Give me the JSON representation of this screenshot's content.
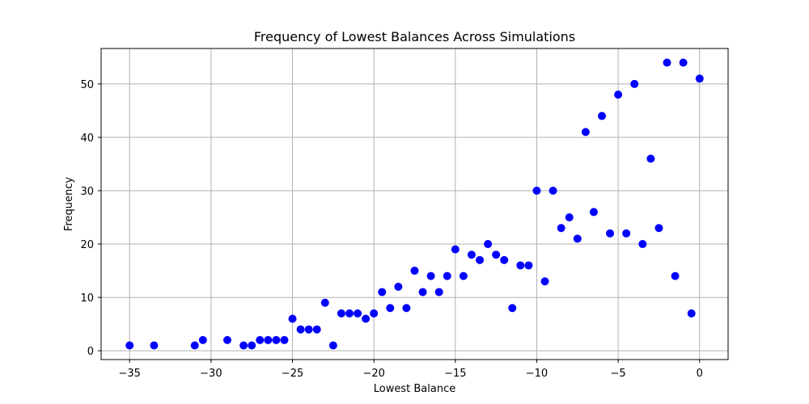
{
  "chart_data": {
    "type": "scatter",
    "title": "Frequency of Lowest Balances Across Simulations",
    "xlabel": "Lowest Balance",
    "ylabel": "Frequency",
    "xlim": [
      -36.75,
      1.75
    ],
    "ylim": [
      -1.65,
      56.65
    ],
    "xticks": [
      -35,
      -30,
      -25,
      -20,
      -15,
      -10,
      -5,
      0
    ],
    "yticks": [
      0,
      10,
      20,
      30,
      40,
      50
    ],
    "grid": true,
    "marker_color": "#0000ff",
    "points": [
      [
        -35,
        1
      ],
      [
        -33.5,
        1
      ],
      [
        -31,
        1
      ],
      [
        -30.5,
        2
      ],
      [
        -29,
        2
      ],
      [
        -28,
        1
      ],
      [
        -27.5,
        1
      ],
      [
        -27,
        2
      ],
      [
        -26.5,
        2
      ],
      [
        -26,
        2
      ],
      [
        -25.5,
        2
      ],
      [
        -25,
        6
      ],
      [
        -24.5,
        4
      ],
      [
        -24,
        4
      ],
      [
        -23.5,
        4
      ],
      [
        -23,
        9
      ],
      [
        -22.5,
        1
      ],
      [
        -22,
        7
      ],
      [
        -21.5,
        7
      ],
      [
        -21,
        7
      ],
      [
        -20.5,
        6
      ],
      [
        -20,
        7
      ],
      [
        -19.5,
        11
      ],
      [
        -19,
        8
      ],
      [
        -18.5,
        12
      ],
      [
        -18,
        8
      ],
      [
        -17.5,
        15
      ],
      [
        -17,
        11
      ],
      [
        -16.5,
        14
      ],
      [
        -16,
        11
      ],
      [
        -15.5,
        14
      ],
      [
        -15,
        19
      ],
      [
        -14.5,
        14
      ],
      [
        -14,
        18
      ],
      [
        -13.5,
        17
      ],
      [
        -13,
        20
      ],
      [
        -12.5,
        18
      ],
      [
        -12,
        17
      ],
      [
        -11.5,
        8
      ],
      [
        -11,
        16
      ],
      [
        -10.5,
        16
      ],
      [
        -10,
        30
      ],
      [
        -9.5,
        13
      ],
      [
        -9,
        30
      ],
      [
        -8.5,
        23
      ],
      [
        -8,
        25
      ],
      [
        -7.5,
        21
      ],
      [
        -7,
        41
      ],
      [
        -6.5,
        26
      ],
      [
        -6,
        44
      ],
      [
        -5.5,
        22
      ],
      [
        -5,
        48
      ],
      [
        -4.5,
        22
      ],
      [
        -4,
        50
      ],
      [
        -3.5,
        20
      ],
      [
        -3,
        36
      ],
      [
        -2.5,
        23
      ],
      [
        -2,
        54
      ],
      [
        -1.5,
        14
      ],
      [
        -1,
        54
      ],
      [
        -0.5,
        7
      ],
      [
        0,
        51
      ]
    ]
  }
}
